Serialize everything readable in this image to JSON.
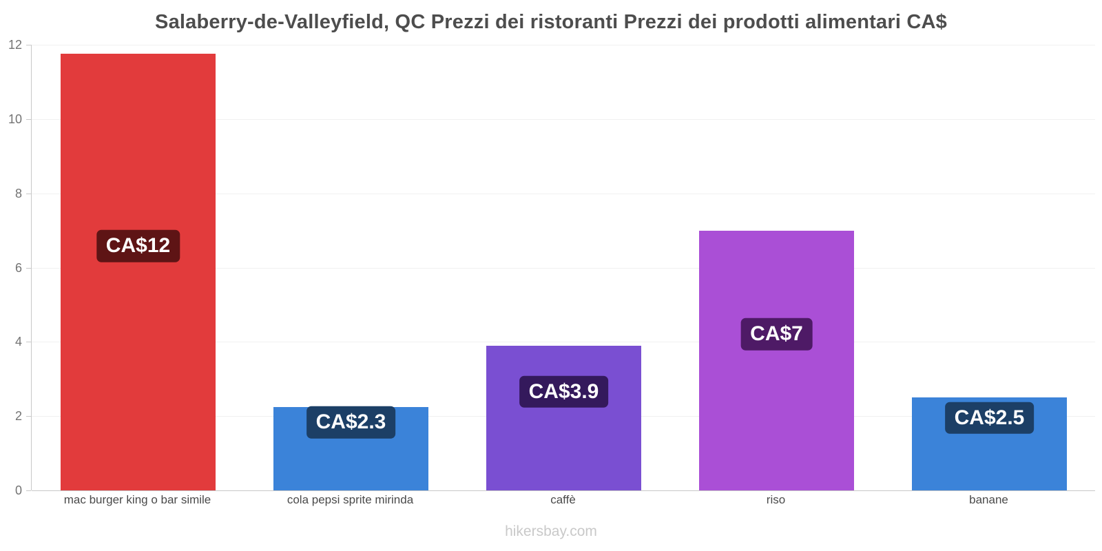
{
  "title": "Salaberry-de-Valleyfield, QC Prezzi dei ristoranti Prezzi dei prodotti alimentari CA$",
  "footer": "hikersbay.com",
  "chart_data": {
    "type": "bar",
    "title": "Salaberry-de-Valleyfield, QC Prezzi dei ristoranti Prezzi dei prodotti alimentari CA$",
    "currency": "CA$",
    "categories": [
      "mac burger king o bar simile",
      "cola pepsi sprite mirinda",
      "caffè",
      "riso",
      "banane"
    ],
    "values": [
      11.75,
      2.25,
      3.9,
      7,
      2.5
    ],
    "value_labels": [
      "CA$12",
      "CA$2.3",
      "CA$3.9",
      "CA$7",
      "CA$2.5"
    ],
    "bar_colors": [
      "#e23b3c",
      "#3b83d9",
      "#7a4fd2",
      "#aa4fd6",
      "#3b83d9"
    ],
    "label_bg_colors": [
      "#5e1415",
      "#1c3f66",
      "#34195c",
      "#4e1a66",
      "#1c3f66"
    ],
    "xlabel": "",
    "ylabel": "",
    "ylim": [
      0,
      12
    ],
    "yticks": [
      0,
      2,
      4,
      6,
      8,
      10,
      12
    ],
    "grid": "horizontal",
    "legend": "none"
  }
}
